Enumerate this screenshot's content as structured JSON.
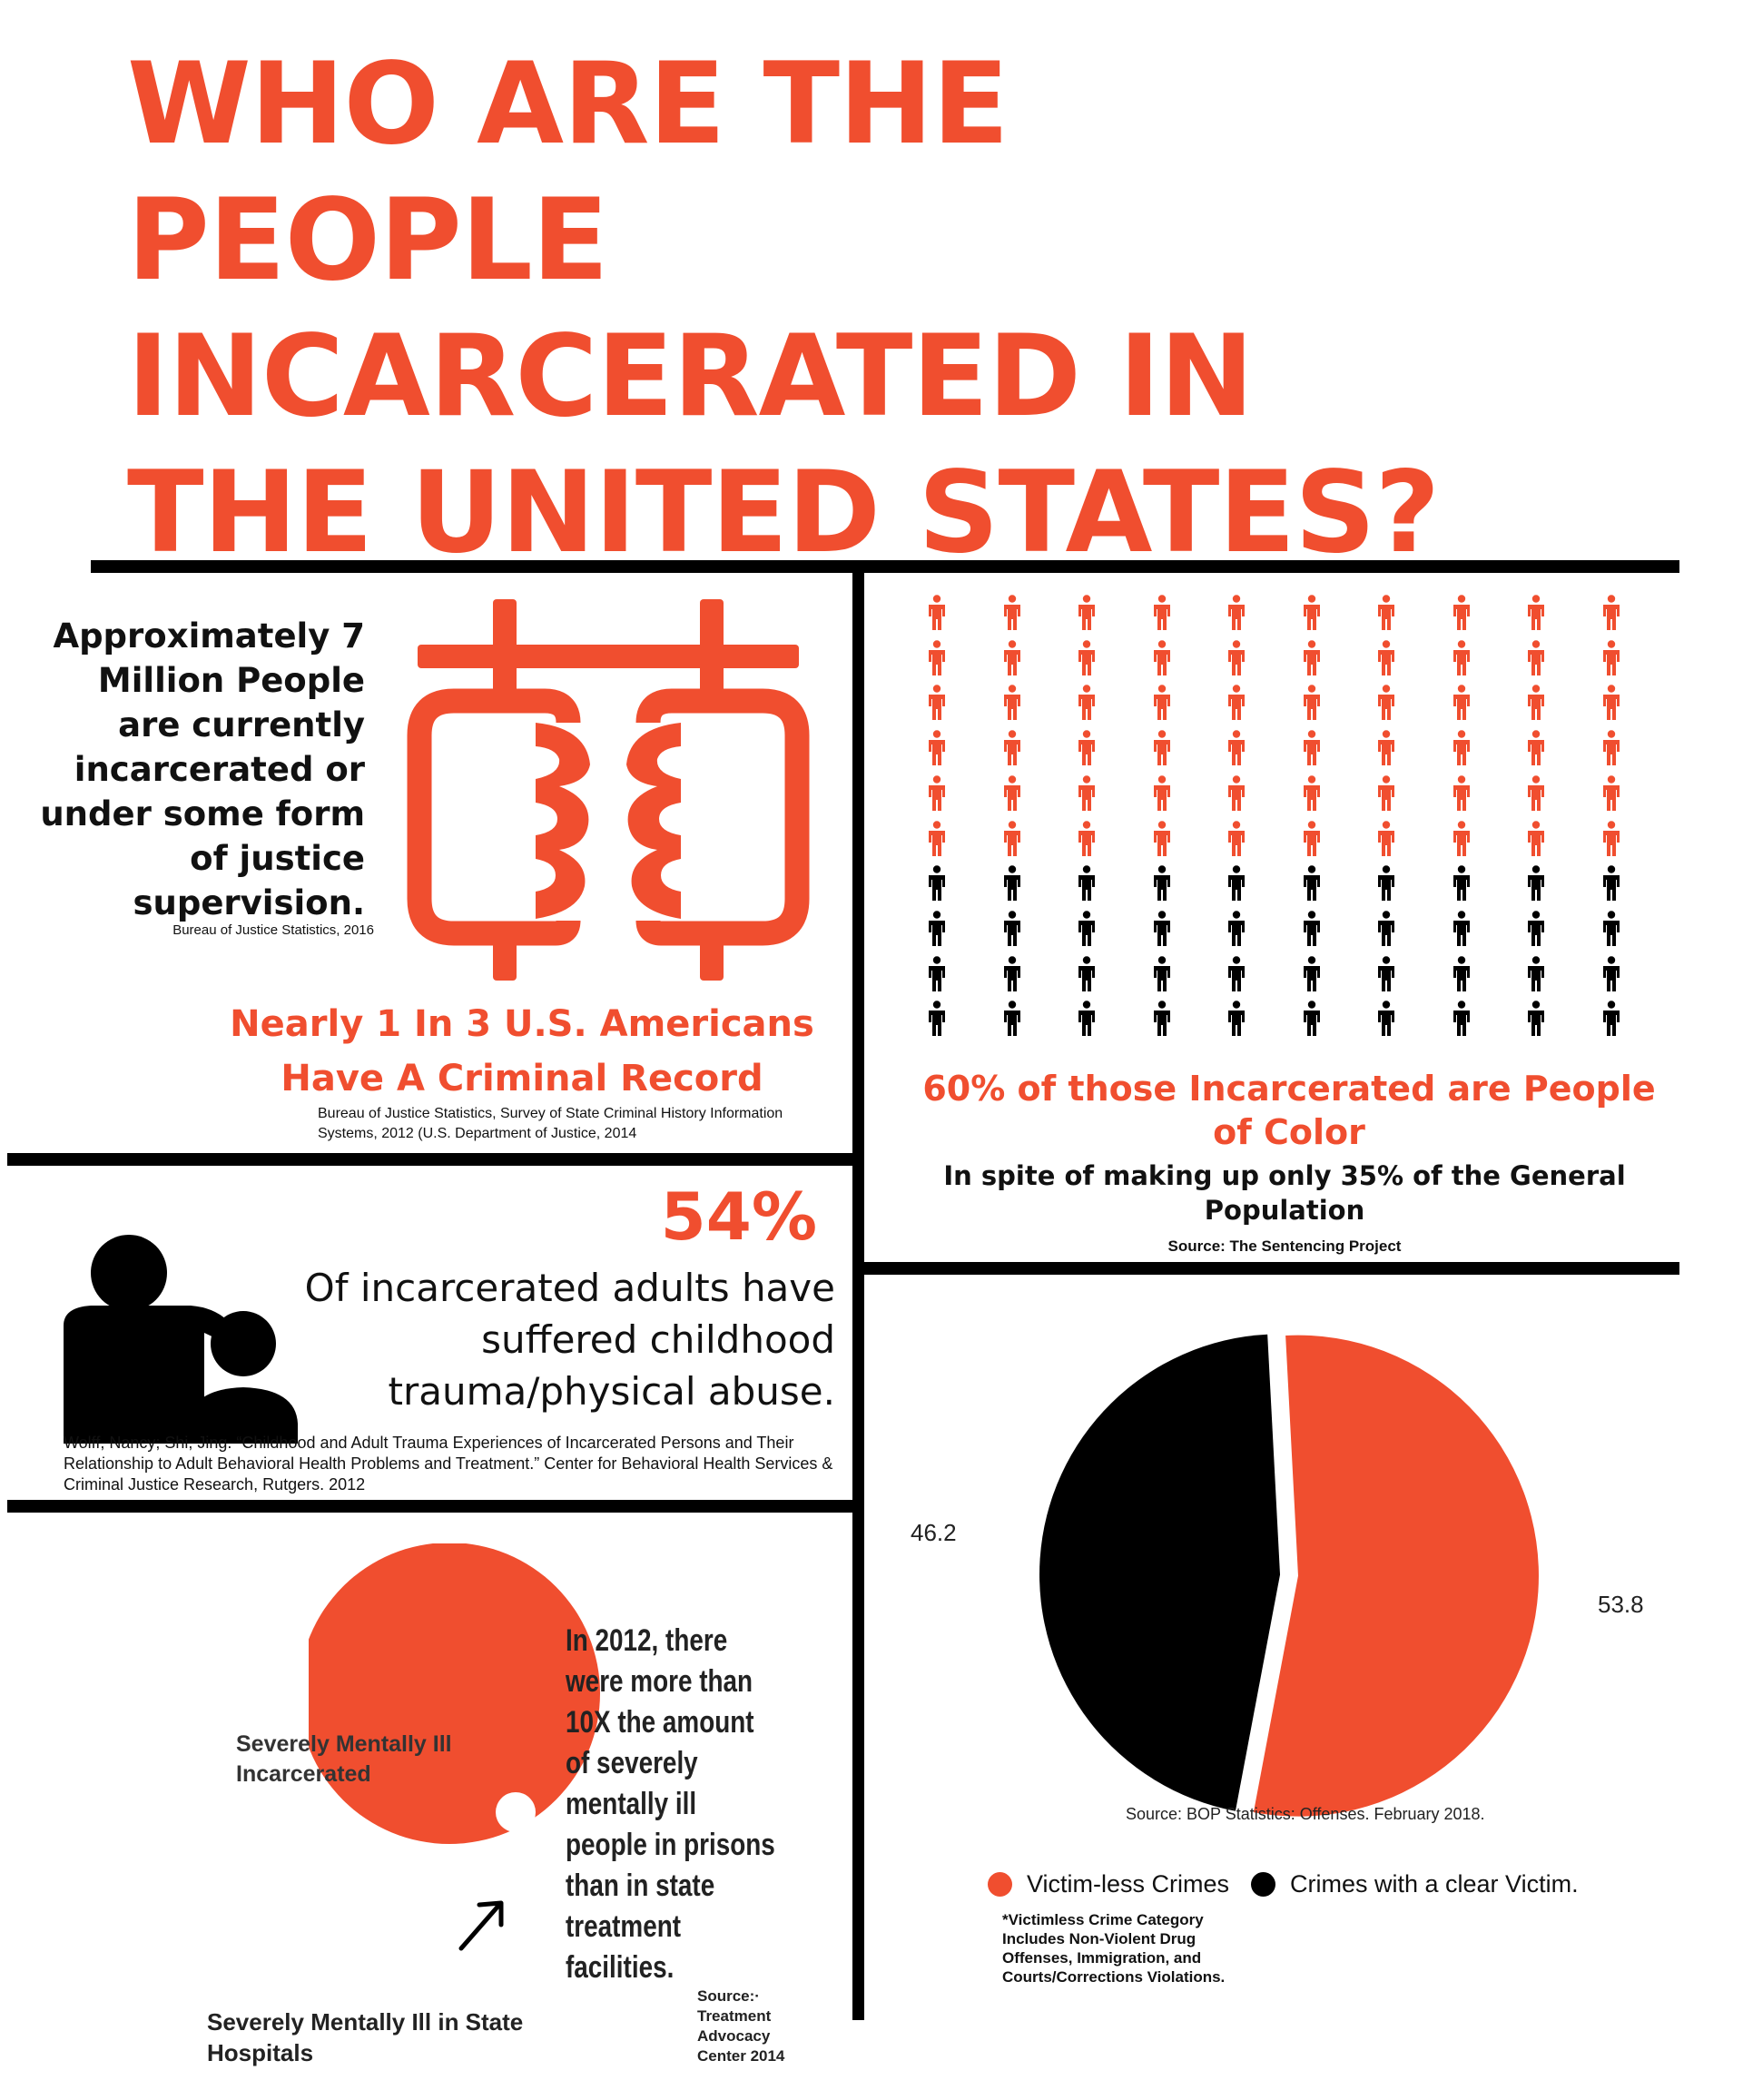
{
  "title": {
    "lines": [
      "WHO ARE THE",
      "PEOPLE",
      "INCARCERATED IN",
      "THE UNITED STATES?"
    ]
  },
  "panel_supervision": {
    "text": "Approximately 7 Million People are currently incarcerated or under some form of justice supervision.",
    "source": "Bureau of Justice Statistics, 2016",
    "icon": "handcuffs-icon",
    "headline_lines": [
      "Nearly 1 In 3 U.S. Americans",
      "Have A Criminal Record"
    ],
    "headline_source": "Bureau of Justice Statistics, Survey of State Criminal History Information Systems, 2012 (U.S. Department of Justice, 2014"
  },
  "panel_people_of_color": {
    "icon": "person-icon",
    "pictogram": {
      "columns": 10,
      "rows": 10,
      "colored_rows": 6,
      "colored_share": 0.6
    },
    "headline": "60% of those Incarcerated are People of Color",
    "subtext": "In spite of making up only 35% of the General Population",
    "source": "Source: The Sentencing Project"
  },
  "panel_trauma": {
    "icon": "adult-child-icon",
    "percent": "54%",
    "text_lines": [
      "Of incarcerated adults have",
      "suffered childhood",
      "trauma/physical abuse."
    ],
    "source": "Wolff, Nancy; Shi, Jing. “Childhood and Adult Trauma Experiences of Incarcerated Persons and Their Relationship to Adult Behavioral Health Problems and Treatment.” Center for Behavioral Health Services & Criminal Justice Research, Rutgers. 2012"
  },
  "panel_mental_illness": {
    "label_incarcerated": "Severely Mentally Ill Incarcerated",
    "label_hospitals": "Severely Mentally Ill in State Hospitals",
    "ratio_label": "10X",
    "text_lines": [
      "In 2012, there",
      "were more than",
      "10X the amount",
      "of severely",
      "mentally ill",
      "people in prisons",
      "than in state",
      "treatment",
      "facilities."
    ],
    "source_lines": [
      "Source:·",
      "Treatment",
      "Advocacy",
      "Center 2014"
    ]
  },
  "chart_data": {
    "type": "pie",
    "title": "",
    "series": [
      {
        "name": "Victim-less Crimes",
        "value": 53.8,
        "color": "#f04e2f"
      },
      {
        "name": "Crimes with a clear Victim.",
        "value": 46.2,
        "color": "#000000"
      }
    ],
    "labels": [
      "53.8",
      "46.2"
    ],
    "source": "Source: BOP Statistics: Offenses. February 2018.",
    "legend_note": "*Victimless Crime Category Includes Non-Violent Drug Offenses, Immigration, and Courts/Corrections Violations."
  },
  "colors": {
    "accent": "#f04e2f",
    "dark": "#000000"
  }
}
